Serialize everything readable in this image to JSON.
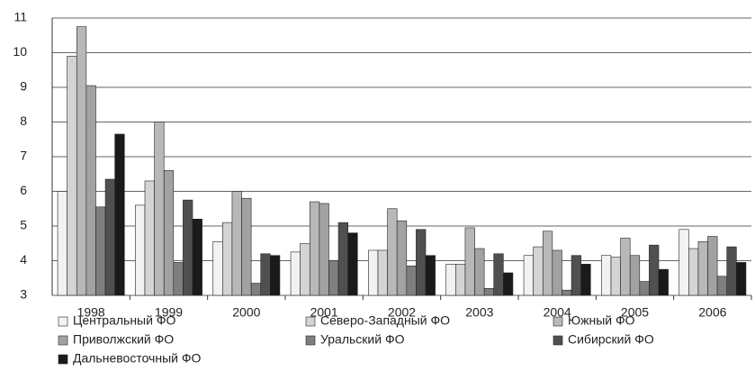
{
  "chart_data": {
    "type": "bar",
    "categories": [
      "1998",
      "1999",
      "2000",
      "2001",
      "2002",
      "2003",
      "2004",
      "2005",
      "2006"
    ],
    "series": [
      {
        "name": "Центральный ФО",
        "color": "#f2f2f2",
        "values": [
          6.0,
          5.6,
          4.55,
          4.25,
          4.3,
          3.9,
          4.15,
          4.15,
          4.9
        ]
      },
      {
        "name": "Северо-Западный ФО",
        "color": "#d4d4d4",
        "values": [
          9.9,
          6.3,
          5.1,
          4.5,
          4.3,
          3.9,
          4.4,
          4.1,
          4.35
        ]
      },
      {
        "name": "Южный ФО",
        "color": "#b8b8b8",
        "values": [
          10.75,
          8.0,
          6.0,
          5.7,
          5.5,
          4.95,
          4.85,
          4.65,
          4.55
        ]
      },
      {
        "name": "Приволжский ФО",
        "color": "#a2a2a2",
        "values": [
          9.05,
          6.6,
          5.8,
          5.65,
          5.15,
          4.35,
          4.3,
          4.15,
          4.7
        ]
      },
      {
        "name": "Уральский ФО",
        "color": "#7f7f7f",
        "values": [
          5.55,
          3.95,
          3.35,
          4.0,
          3.85,
          3.2,
          3.15,
          3.4,
          3.55
        ]
      },
      {
        "name": "Сибирский ФО",
        "color": "#505050",
        "values": [
          6.35,
          5.75,
          4.2,
          5.1,
          4.9,
          4.2,
          4.15,
          4.45,
          4.4
        ]
      },
      {
        "name": "Дальневосточный ФО",
        "color": "#1a1a1a",
        "values": [
          7.65,
          5.2,
          4.15,
          4.8,
          4.15,
          3.65,
          3.9,
          3.75,
          3.95
        ]
      }
    ],
    "ylim": [
      3,
      11
    ],
    "yticks": [
      3,
      4,
      5,
      6,
      7,
      8,
      9,
      10,
      11
    ],
    "grid": true,
    "legend": "bottom"
  }
}
